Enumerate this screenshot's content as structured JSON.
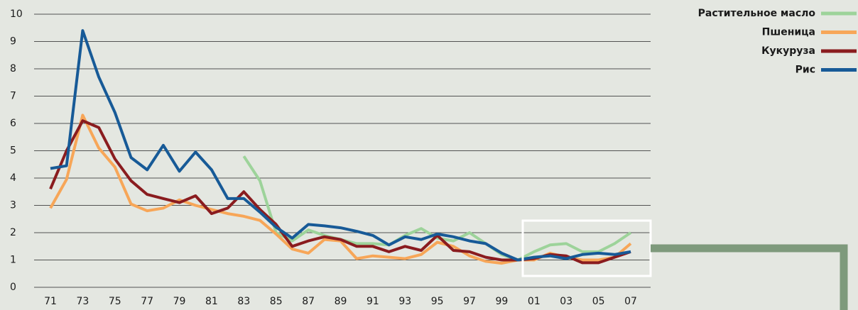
{
  "chart_data": {
    "type": "line",
    "categories": [
      "71",
      null,
      "73",
      null,
      "75",
      null,
      "77",
      null,
      "79",
      null,
      "81",
      null,
      "83",
      null,
      "85",
      null,
      "87",
      null,
      "89",
      null,
      "91",
      null,
      "93",
      null,
      "95",
      null,
      "97",
      null,
      "99",
      null,
      "01",
      null,
      "03",
      null,
      "05",
      null,
      "07"
    ],
    "series": [
      {
        "name": "Растительное масло",
        "color": "#9dd39a",
        "values": [
          null,
          null,
          null,
          null,
          null,
          null,
          null,
          null,
          null,
          null,
          null,
          null,
          4.8,
          3.9,
          2.0,
          1.7,
          2.1,
          1.9,
          1.75,
          1.6,
          1.6,
          1.55,
          1.9,
          2.15,
          1.8,
          1.7,
          2.0,
          1.6,
          1.2,
          1.0,
          1.3,
          1.55,
          1.6,
          1.3,
          1.3,
          1.6,
          2.0
        ]
      },
      {
        "name": "Пшеница",
        "color": "#f7a658",
        "values": [
          2.9,
          3.95,
          6.3,
          5.1,
          4.4,
          3.05,
          2.8,
          2.9,
          3.2,
          3.0,
          2.85,
          2.7,
          2.6,
          2.45,
          1.95,
          1.4,
          1.25,
          1.75,
          1.7,
          1.05,
          1.15,
          1.1,
          1.05,
          1.2,
          1.65,
          1.5,
          1.15,
          0.95,
          0.88,
          1.0,
          1.0,
          1.25,
          1.1,
          1.0,
          1.0,
          1.1,
          1.6
        ]
      },
      {
        "name": "Кукуруза",
        "color": "#8a1c1f",
        "values": [
          3.6,
          5.0,
          6.1,
          5.85,
          4.7,
          3.9,
          3.4,
          3.25,
          3.1,
          3.35,
          2.7,
          2.9,
          3.5,
          2.85,
          2.3,
          1.5,
          1.7,
          1.85,
          1.75,
          1.5,
          1.5,
          1.3,
          1.5,
          1.35,
          1.9,
          1.35,
          1.3,
          1.1,
          1.0,
          1.0,
          1.05,
          1.2,
          1.15,
          0.9,
          0.9,
          1.1,
          1.3
        ]
      },
      {
        "name": "Рис",
        "color": "#175a97",
        "values": [
          4.35,
          4.45,
          9.4,
          7.7,
          6.4,
          4.75,
          4.3,
          5.2,
          4.25,
          4.95,
          4.3,
          3.25,
          3.25,
          2.75,
          2.2,
          1.8,
          2.3,
          2.25,
          2.18,
          2.05,
          1.9,
          1.55,
          1.85,
          1.75,
          1.95,
          1.85,
          1.7,
          1.6,
          1.25,
          1.0,
          1.1,
          1.15,
          1.05,
          1.2,
          1.25,
          1.2,
          1.3
        ]
      }
    ],
    "ylim": [
      0,
      10
    ],
    "yticks": [
      0,
      1,
      2,
      3,
      4,
      5,
      6,
      7,
      8,
      9,
      10
    ],
    "grid": true
  }
}
